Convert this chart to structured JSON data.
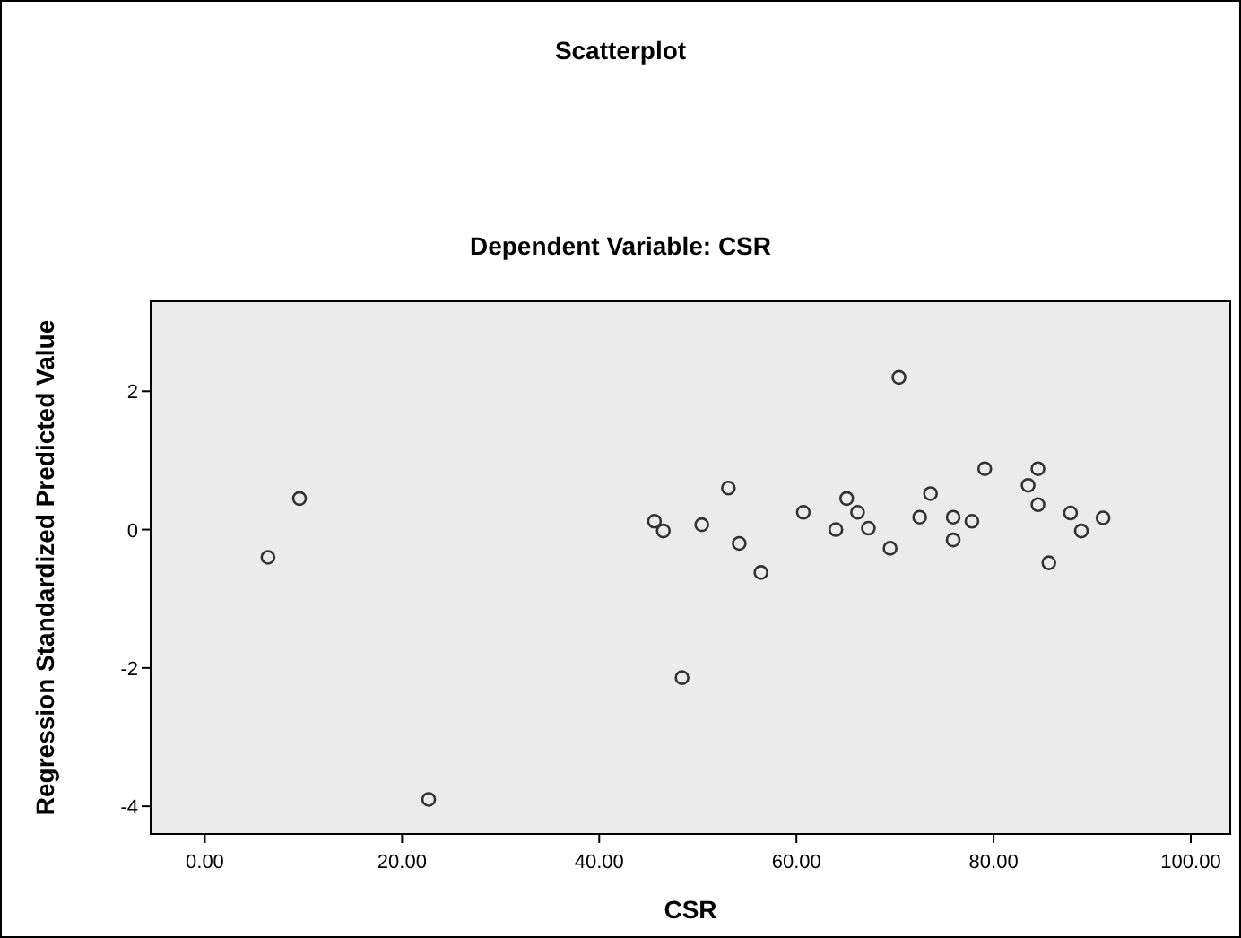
{
  "chart_data": {
    "type": "scatter",
    "title": "Scatterplot",
    "subtitle": "Dependent Variable: CSR",
    "xlabel": "CSR",
    "ylabel": "Regression Standardized Predicted Value",
    "x": [
      6.4,
      9.6,
      22.7,
      45.6,
      46.5,
      48.4,
      50.4,
      53.1,
      54.2,
      56.4,
      60.7,
      64,
      65.1,
      66.2,
      67.3,
      69.5,
      70.4,
      72.5,
      73.6,
      75.9,
      75.9,
      77.8,
      79.1,
      83.5,
      84.5,
      84.5,
      85.6,
      87.8,
      88.9,
      91.1
    ],
    "values": [
      -0.4,
      0.45,
      -3.9,
      0.12,
      -0.02,
      -2.14,
      0.07,
      0.6,
      -0.2,
      -0.62,
      0.25,
      0.0,
      0.45,
      0.25,
      0.02,
      -0.27,
      2.2,
      0.18,
      0.52,
      0.18,
      -0.15,
      0.12,
      0.88,
      0.64,
      0.88,
      0.36,
      -0.48,
      0.24,
      -0.02,
      0.17
    ],
    "color": "#333333",
    "marker": "circle",
    "xlim": [
      -5.5,
      104
    ],
    "ylim": [
      -4.4,
      3.3
    ],
    "xticks": [
      {
        "value": 0,
        "label": "0.00"
      },
      {
        "value": 20,
        "label": "20.00"
      },
      {
        "value": 40,
        "label": "40.00"
      },
      {
        "value": 60,
        "label": "60.00"
      },
      {
        "value": 80,
        "label": "80.00"
      },
      {
        "value": 100,
        "label": "100.00"
      }
    ],
    "yticks": [
      -4,
      -2,
      0,
      2
    ],
    "grid": false
  }
}
